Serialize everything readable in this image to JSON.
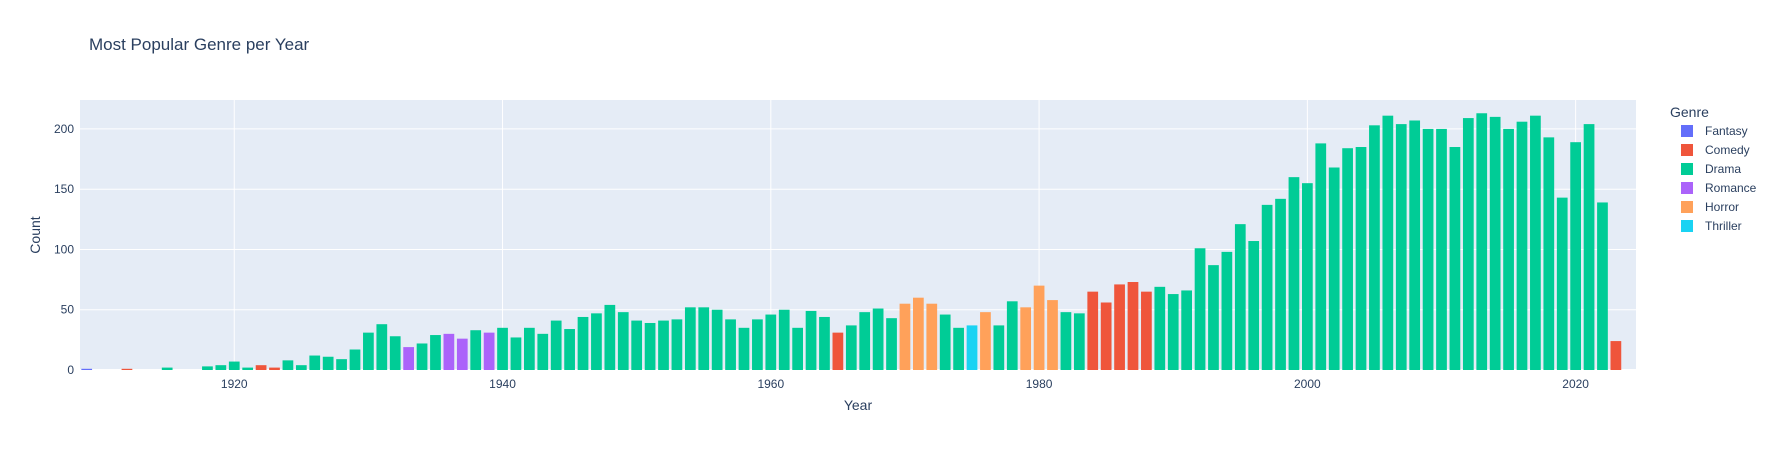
{
  "chart_data": {
    "type": "bar",
    "title": "Most Popular Genre per Year",
    "xlabel": "Year",
    "ylabel": "Count",
    "xlim": [
      1908.5,
      2024.5
    ],
    "ylim": [
      0,
      224
    ],
    "x_ticks": [
      1920,
      1940,
      1960,
      1980,
      2000,
      2020
    ],
    "y_ticks": [
      0,
      50,
      100,
      150,
      200
    ],
    "grid": true,
    "legend_title": "Genre",
    "legend_position": "right",
    "genres": [
      {
        "name": "Fantasy",
        "color": "#636efa"
      },
      {
        "name": "Comedy",
        "color": "#ef553b"
      },
      {
        "name": "Drama",
        "color": "#00cc96"
      },
      {
        "name": "Romance",
        "color": "#ab63fa"
      },
      {
        "name": "Horror",
        "color": "#ffa15a"
      },
      {
        "name": "Thriller",
        "color": "#19d3f3"
      }
    ],
    "bars": [
      {
        "year": 1909,
        "value": 1,
        "genre": "Fantasy"
      },
      {
        "year": 1912,
        "value": 1,
        "genre": "Comedy"
      },
      {
        "year": 1915,
        "value": 2,
        "genre": "Drama"
      },
      {
        "year": 1918,
        "value": 3,
        "genre": "Drama"
      },
      {
        "year": 1919,
        "value": 4,
        "genre": "Drama"
      },
      {
        "year": 1920,
        "value": 7,
        "genre": "Drama"
      },
      {
        "year": 1921,
        "value": 2,
        "genre": "Drama"
      },
      {
        "year": 1922,
        "value": 4,
        "genre": "Comedy"
      },
      {
        "year": 1923,
        "value": 2,
        "genre": "Comedy"
      },
      {
        "year": 1924,
        "value": 8,
        "genre": "Drama"
      },
      {
        "year": 1925,
        "value": 4,
        "genre": "Drama"
      },
      {
        "year": 1926,
        "value": 12,
        "genre": "Drama"
      },
      {
        "year": 1927,
        "value": 11,
        "genre": "Drama"
      },
      {
        "year": 1928,
        "value": 9,
        "genre": "Drama"
      },
      {
        "year": 1929,
        "value": 17,
        "genre": "Drama"
      },
      {
        "year": 1930,
        "value": 31,
        "genre": "Drama"
      },
      {
        "year": 1931,
        "value": 38,
        "genre": "Drama"
      },
      {
        "year": 1932,
        "value": 28,
        "genre": "Drama"
      },
      {
        "year": 1933,
        "value": 19,
        "genre": "Romance"
      },
      {
        "year": 1934,
        "value": 22,
        "genre": "Drama"
      },
      {
        "year": 1935,
        "value": 29,
        "genre": "Drama"
      },
      {
        "year": 1936,
        "value": 30,
        "genre": "Romance"
      },
      {
        "year": 1937,
        "value": 26,
        "genre": "Romance"
      },
      {
        "year": 1938,
        "value": 33,
        "genre": "Drama"
      },
      {
        "year": 1939,
        "value": 31,
        "genre": "Romance"
      },
      {
        "year": 1940,
        "value": 35,
        "genre": "Drama"
      },
      {
        "year": 1941,
        "value": 27,
        "genre": "Drama"
      },
      {
        "year": 1942,
        "value": 35,
        "genre": "Drama"
      },
      {
        "year": 1943,
        "value": 30,
        "genre": "Drama"
      },
      {
        "year": 1944,
        "value": 41,
        "genre": "Drama"
      },
      {
        "year": 1945,
        "value": 34,
        "genre": "Drama"
      },
      {
        "year": 1946,
        "value": 44,
        "genre": "Drama"
      },
      {
        "year": 1947,
        "value": 47,
        "genre": "Drama"
      },
      {
        "year": 1948,
        "value": 54,
        "genre": "Drama"
      },
      {
        "year": 1949,
        "value": 48,
        "genre": "Drama"
      },
      {
        "year": 1950,
        "value": 41,
        "genre": "Drama"
      },
      {
        "year": 1951,
        "value": 39,
        "genre": "Drama"
      },
      {
        "year": 1952,
        "value": 41,
        "genre": "Drama"
      },
      {
        "year": 1953,
        "value": 42,
        "genre": "Drama"
      },
      {
        "year": 1954,
        "value": 52,
        "genre": "Drama"
      },
      {
        "year": 1955,
        "value": 52,
        "genre": "Drama"
      },
      {
        "year": 1956,
        "value": 50,
        "genre": "Drama"
      },
      {
        "year": 1957,
        "value": 42,
        "genre": "Drama"
      },
      {
        "year": 1958,
        "value": 35,
        "genre": "Drama"
      },
      {
        "year": 1959,
        "value": 42,
        "genre": "Drama"
      },
      {
        "year": 1960,
        "value": 46,
        "genre": "Drama"
      },
      {
        "year": 1961,
        "value": 50,
        "genre": "Drama"
      },
      {
        "year": 1962,
        "value": 35,
        "genre": "Drama"
      },
      {
        "year": 1963,
        "value": 49,
        "genre": "Drama"
      },
      {
        "year": 1964,
        "value": 44,
        "genre": "Drama"
      },
      {
        "year": 1965,
        "value": 31,
        "genre": "Comedy"
      },
      {
        "year": 1966,
        "value": 37,
        "genre": "Drama"
      },
      {
        "year": 1967,
        "value": 48,
        "genre": "Drama"
      },
      {
        "year": 1968,
        "value": 51,
        "genre": "Drama"
      },
      {
        "year": 1969,
        "value": 43,
        "genre": "Drama"
      },
      {
        "year": 1970,
        "value": 55,
        "genre": "Horror"
      },
      {
        "year": 1971,
        "value": 60,
        "genre": "Horror"
      },
      {
        "year": 1972,
        "value": 55,
        "genre": "Horror"
      },
      {
        "year": 1973,
        "value": 46,
        "genre": "Drama"
      },
      {
        "year": 1974,
        "value": 35,
        "genre": "Drama"
      },
      {
        "year": 1975,
        "value": 37,
        "genre": "Thriller"
      },
      {
        "year": 1976,
        "value": 48,
        "genre": "Horror"
      },
      {
        "year": 1977,
        "value": 37,
        "genre": "Drama"
      },
      {
        "year": 1978,
        "value": 57,
        "genre": "Drama"
      },
      {
        "year": 1979,
        "value": 52,
        "genre": "Horror"
      },
      {
        "year": 1980,
        "value": 70,
        "genre": "Horror"
      },
      {
        "year": 1981,
        "value": 58,
        "genre": "Horror"
      },
      {
        "year": 1982,
        "value": 48,
        "genre": "Drama"
      },
      {
        "year": 1983,
        "value": 47,
        "genre": "Drama"
      },
      {
        "year": 1984,
        "value": 65,
        "genre": "Comedy"
      },
      {
        "year": 1985,
        "value": 56,
        "genre": "Comedy"
      },
      {
        "year": 1986,
        "value": 71,
        "genre": "Comedy"
      },
      {
        "year": 1987,
        "value": 73,
        "genre": "Comedy"
      },
      {
        "year": 1988,
        "value": 65,
        "genre": "Comedy"
      },
      {
        "year": 1989,
        "value": 69,
        "genre": "Drama"
      },
      {
        "year": 1990,
        "value": 63,
        "genre": "Drama"
      },
      {
        "year": 1991,
        "value": 66,
        "genre": "Drama"
      },
      {
        "year": 1992,
        "value": 101,
        "genre": "Drama"
      },
      {
        "year": 1993,
        "value": 87,
        "genre": "Drama"
      },
      {
        "year": 1994,
        "value": 98,
        "genre": "Drama"
      },
      {
        "year": 1995,
        "value": 121,
        "genre": "Drama"
      },
      {
        "year": 1996,
        "value": 107,
        "genre": "Drama"
      },
      {
        "year": 1997,
        "value": 137,
        "genre": "Drama"
      },
      {
        "year": 1998,
        "value": 142,
        "genre": "Drama"
      },
      {
        "year": 1999,
        "value": 160,
        "genre": "Drama"
      },
      {
        "year": 2000,
        "value": 155,
        "genre": "Drama"
      },
      {
        "year": 2001,
        "value": 188,
        "genre": "Drama"
      },
      {
        "year": 2002,
        "value": 168,
        "genre": "Drama"
      },
      {
        "year": 2003,
        "value": 184,
        "genre": "Drama"
      },
      {
        "year": 2004,
        "value": 185,
        "genre": "Drama"
      },
      {
        "year": 2005,
        "value": 203,
        "genre": "Drama"
      },
      {
        "year": 2006,
        "value": 211,
        "genre": "Drama"
      },
      {
        "year": 2007,
        "value": 204,
        "genre": "Drama"
      },
      {
        "year": 2008,
        "value": 207,
        "genre": "Drama"
      },
      {
        "year": 2009,
        "value": 200,
        "genre": "Drama"
      },
      {
        "year": 2010,
        "value": 200,
        "genre": "Drama"
      },
      {
        "year": 2011,
        "value": 185,
        "genre": "Drama"
      },
      {
        "year": 2012,
        "value": 209,
        "genre": "Drama"
      },
      {
        "year": 2013,
        "value": 213,
        "genre": "Drama"
      },
      {
        "year": 2014,
        "value": 210,
        "genre": "Drama"
      },
      {
        "year": 2015,
        "value": 200,
        "genre": "Drama"
      },
      {
        "year": 2016,
        "value": 206,
        "genre": "Drama"
      },
      {
        "year": 2017,
        "value": 211,
        "genre": "Drama"
      },
      {
        "year": 2018,
        "value": 193,
        "genre": "Drama"
      },
      {
        "year": 2019,
        "value": 143,
        "genre": "Drama"
      },
      {
        "year": 2020,
        "value": 189,
        "genre": "Drama"
      },
      {
        "year": 2021,
        "value": 204,
        "genre": "Drama"
      },
      {
        "year": 2022,
        "value": 139,
        "genre": "Drama"
      },
      {
        "year": 2023,
        "value": 24,
        "genre": "Comedy"
      }
    ]
  }
}
